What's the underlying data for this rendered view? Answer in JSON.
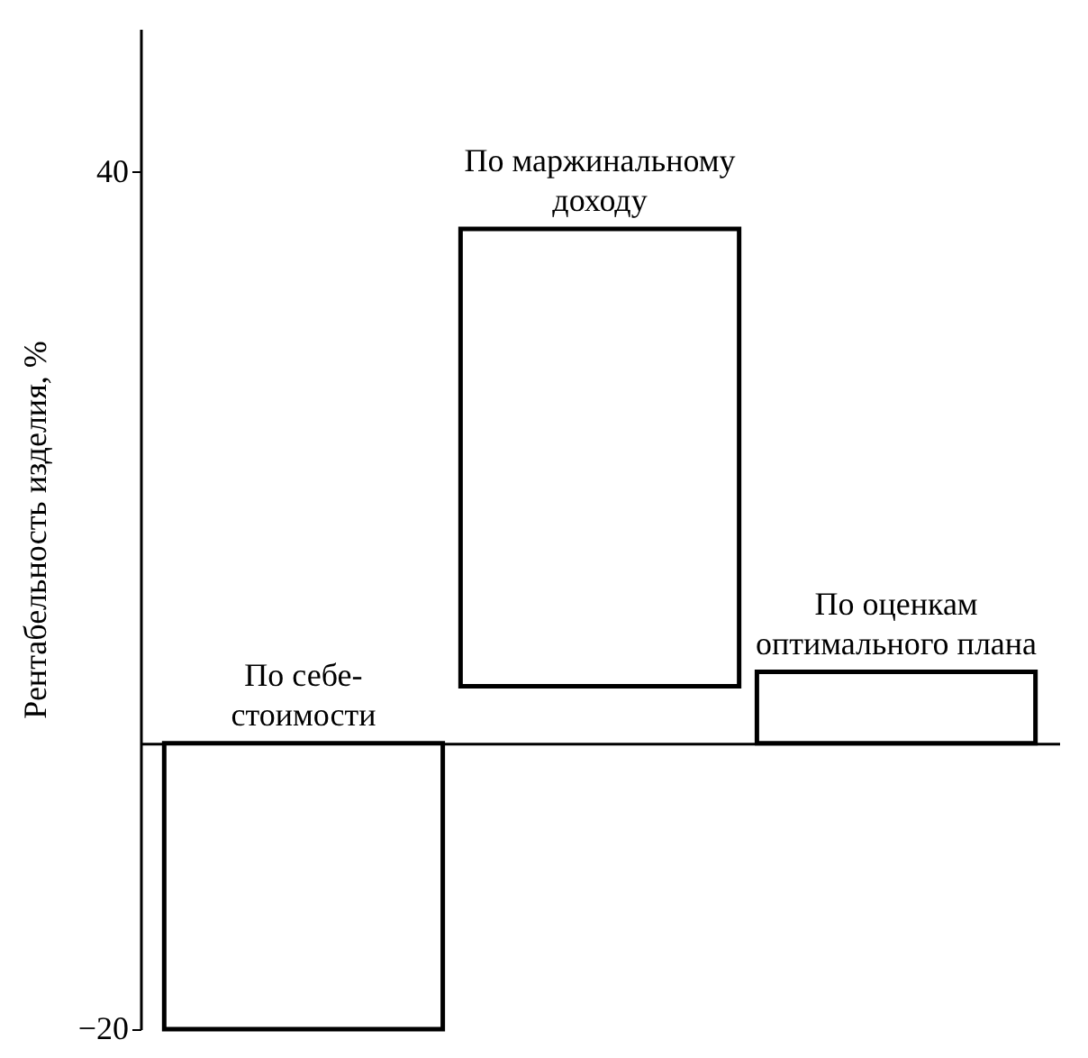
{
  "chart_data": {
    "type": "bar",
    "ylabel": "Рентабельность изделия, %",
    "categories": [
      "По себе-\nстоимости",
      "По маржинальному\nдоходу",
      "По оценкам\nоптимального  плана"
    ],
    "values": [
      -20,
      32,
      5
    ],
    "base": [
      0,
      4,
      0
    ],
    "colors": [
      "#ffffff",
      "#ffffff",
      "#ffffff"
    ],
    "ylim": [
      -20,
      50
    ],
    "yticks": [
      -20,
      40
    ],
    "grid": false
  }
}
